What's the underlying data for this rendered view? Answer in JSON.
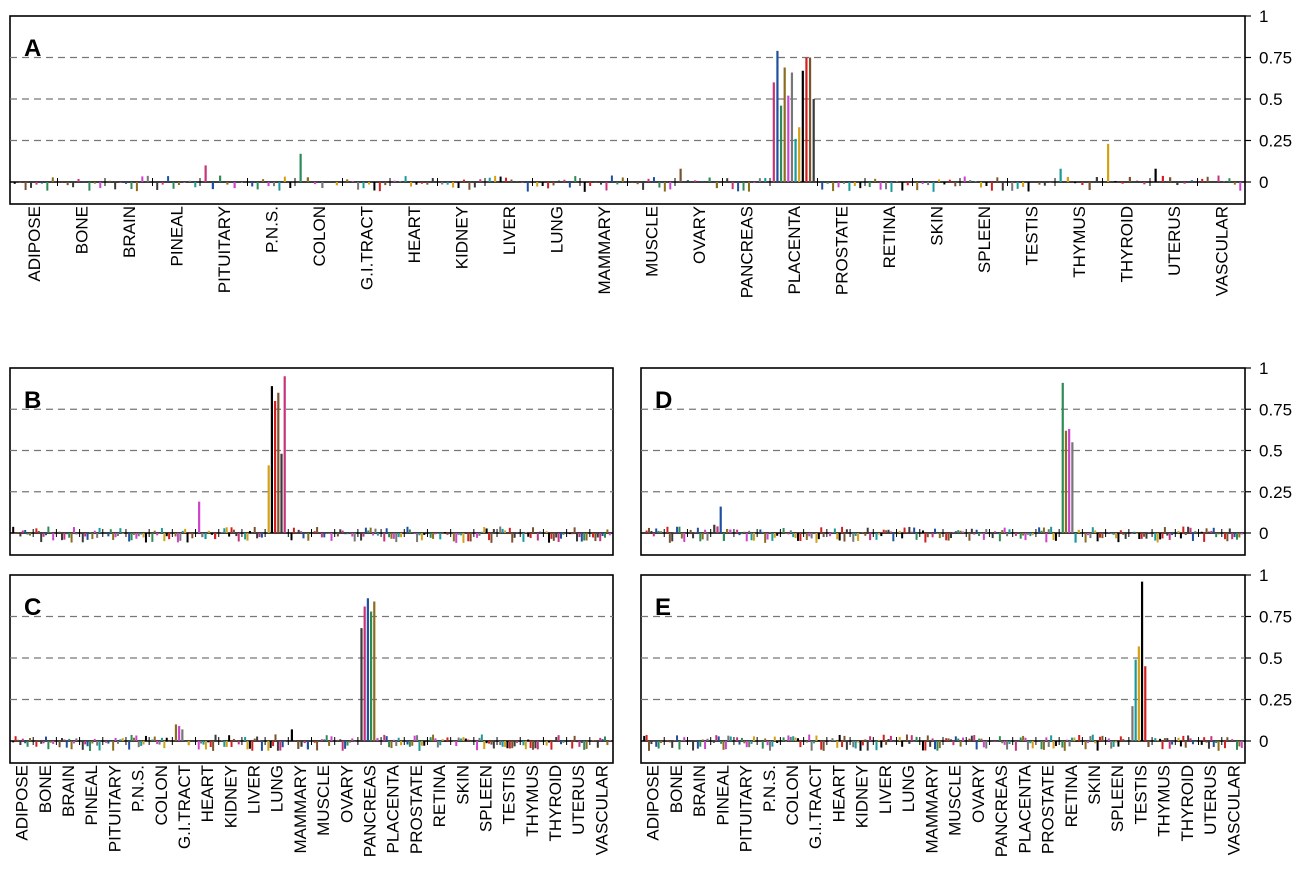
{
  "figure": {
    "tissues": [
      "ADIPOSE",
      "BONE",
      "BRAIN",
      "PINEAL",
      "PITUITARY",
      "P.N.S.",
      "COLON",
      "G.I.TRACT",
      "HEART",
      "KIDNEY",
      "LIVER",
      "LUNG",
      "MAMMARY",
      "MUSCLE",
      "OVARY",
      "PANCREAS",
      "PLACENTA",
      "PROSTATE",
      "RETINA",
      "SKIN",
      "SPLEEN",
      "TESTIS",
      "THYMUS",
      "THYROID",
      "UTERUS",
      "VASCULAR"
    ]
  },
  "chart_data": [
    {
      "panel": "A",
      "type": "bar",
      "y_ticks": [
        "1",
        "0.75",
        "0.5",
        "0.25",
        "0"
      ],
      "ylim": [
        -0.1,
        1
      ],
      "grid": "dashed horizontal lines at 0.25, 0.5, 0.75",
      "categories": [
        "ADIPOSE",
        "BONE",
        "BRAIN",
        "PINEAL",
        "PITUITARY",
        "P.N.S.",
        "COLON",
        "G.I.TRACT",
        "HEART",
        "KIDNEY",
        "LIVER",
        "LUNG",
        "MAMMARY",
        "MUSCLE",
        "OVARY",
        "PANCREAS",
        "PLACENTA",
        "PROSTATE",
        "RETINA",
        "SKIN",
        "SPLEEN",
        "TESTIS",
        "THYMUS",
        "THYROID",
        "UTERUS",
        "VASCULAR"
      ],
      "peaks": [
        {
          "category": "PLACENTA",
          "values": [
            0.6,
            0.79,
            0.46,
            0.69,
            0.52,
            0.66,
            0.26,
            0.33,
            0.67,
            0.75,
            0.75,
            0.5
          ]
        },
        {
          "category": "COLON",
          "values": [
            0.17
          ]
        },
        {
          "category": "PITUITARY",
          "values": [
            0.1
          ]
        },
        {
          "category": "THYROID",
          "values": [
            0.23
          ]
        },
        {
          "category": "OVARY",
          "values": [
            0.08
          ]
        },
        {
          "category": "UTERUS",
          "values": [
            0.08
          ]
        },
        {
          "category": "THYMUS",
          "values": [
            0.08
          ]
        }
      ],
      "baseline": "small values near 0 (about -0.05 to 0.05) for all other tissues"
    },
    {
      "panel": "B",
      "type": "bar",
      "y_ticks": [
        "1",
        "0.75",
        "0.5",
        "0.25",
        "0"
      ],
      "ylim": [
        -0.1,
        1
      ],
      "categories": [
        "ADIPOSE",
        "BONE",
        "BRAIN",
        "PINEAL",
        "PITUITARY",
        "P.N.S.",
        "COLON",
        "G.I.TRACT",
        "HEART",
        "KIDNEY",
        "LIVER",
        "LUNG",
        "MAMMARY",
        "MUSCLE",
        "OVARY",
        "PANCREAS",
        "PLACENTA",
        "PROSTATE",
        "RETINA",
        "SKIN",
        "SPLEEN",
        "TESTIS",
        "THYMUS",
        "THYROID",
        "UTERUS",
        "VASCULAR"
      ],
      "peaks": [
        {
          "category": "LUNG",
          "values": [
            0.41,
            0.89,
            0.8,
            0.85,
            0.48,
            0.95
          ]
        },
        {
          "category": "HEART",
          "values": [
            0.19
          ]
        }
      ]
    },
    {
      "panel": "C",
      "type": "bar",
      "y_ticks": [
        "1",
        "0.75",
        "0.5",
        "0.25",
        "0"
      ],
      "ylim": [
        -0.1,
        1
      ],
      "categories": [
        "ADIPOSE",
        "BONE",
        "BRAIN",
        "PINEAL",
        "PITUITARY",
        "P.N.S.",
        "COLON",
        "G.I.TRACT",
        "HEART",
        "KIDNEY",
        "LIVER",
        "LUNG",
        "MAMMARY",
        "MUSCLE",
        "OVARY",
        "PANCREAS",
        "PLACENTA",
        "PROSTATE",
        "RETINA",
        "SKIN",
        "SPLEEN",
        "TESTIS",
        "THYMUS",
        "THYROID",
        "UTERUS",
        "VASCULAR"
      ],
      "peaks": [
        {
          "category": "PANCREAS",
          "values": [
            0.68,
            0.81,
            0.86,
            0.78,
            0.84
          ]
        },
        {
          "category": "G.I.TRACT",
          "values": [
            0.1,
            0.09,
            0.07
          ]
        },
        {
          "category": "MAMMARY",
          "values": [
            0.07
          ]
        }
      ]
    },
    {
      "panel": "D",
      "type": "bar",
      "y_ticks": [
        "1",
        "0.75",
        "0.5",
        "0.25",
        "0"
      ],
      "ylim": [
        -0.1,
        1
      ],
      "categories": [
        "ADIPOSE",
        "BONE",
        "BRAIN",
        "PINEAL",
        "PITUITARY",
        "P.N.S.",
        "COLON",
        "G.I.TRACT",
        "HEART",
        "KIDNEY",
        "LIVER",
        "LUNG",
        "MAMMARY",
        "MUSCLE",
        "OVARY",
        "PANCREAS",
        "PLACENTA",
        "PROSTATE",
        "RETINA",
        "SKIN",
        "SPLEEN",
        "TESTIS",
        "THYMUS",
        "THYROID",
        "UTERUS",
        "VASCULAR"
      ],
      "peaks": [
        {
          "category": "RETINA",
          "values": [
            0.91,
            0.62,
            0.63,
            0.55
          ]
        },
        {
          "category": "PINEAL",
          "values": [
            0.05,
            0.04,
            0.16
          ]
        }
      ]
    },
    {
      "panel": "E",
      "type": "bar",
      "y_ticks": [
        "1",
        "0.75",
        "0.5",
        "0.25",
        "0"
      ],
      "ylim": [
        -0.1,
        1
      ],
      "categories": [
        "ADIPOSE",
        "BONE",
        "BRAIN",
        "PINEAL",
        "PITUITARY",
        "P.N.S.",
        "COLON",
        "G.I.TRACT",
        "HEART",
        "KIDNEY",
        "LIVER",
        "LUNG",
        "MAMMARY",
        "MUSCLE",
        "OVARY",
        "PANCREAS",
        "PLACENTA",
        "PROSTATE",
        "RETINA",
        "SKIN",
        "SPLEEN",
        "TESTIS",
        "THYMUS",
        "THYROID",
        "UTERUS",
        "VASCULAR"
      ],
      "peaks": [
        {
          "category": "TESTIS",
          "values": [
            0.21,
            0.49,
            0.57,
            0.96,
            0.45
          ]
        }
      ]
    }
  ]
}
